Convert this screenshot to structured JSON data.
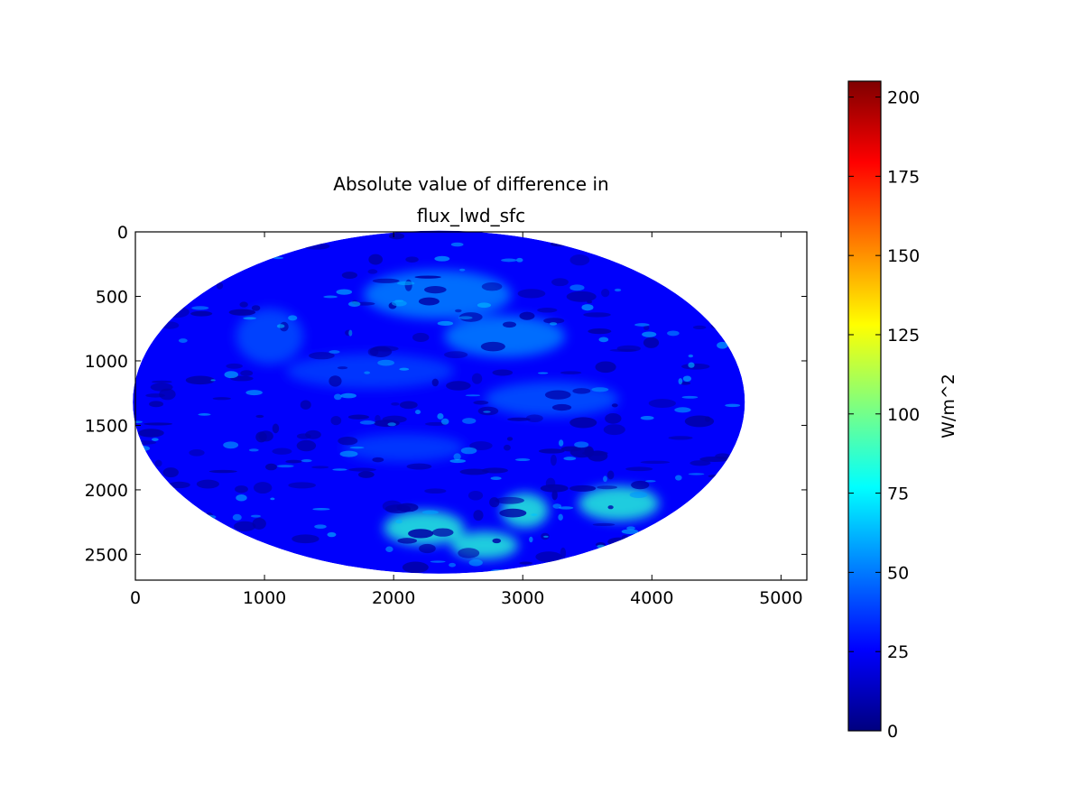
{
  "chart_data": {
    "type": "heatmap",
    "title_lines": [
      "Absolute value of difference in",
      "flux_lwd_sfc"
    ],
    "xlabel": "",
    "ylabel": "",
    "xlim": [
      0,
      5200
    ],
    "ylim": [
      2700,
      0
    ],
    "x_ticks": [
      0,
      1000,
      2000,
      3000,
      4000,
      5000
    ],
    "y_ticks": [
      0,
      500,
      1000,
      1500,
      2000,
      2500
    ],
    "x_tick_labels": [
      "0",
      "1000",
      "2000",
      "3000",
      "4000",
      "5000"
    ],
    "y_tick_labels": [
      "0",
      "500",
      "1000",
      "1500",
      "2000",
      "2500"
    ],
    "image_extent": {
      "disk_center_x": 2350,
      "disk_center_y": 1320,
      "disk_radius_x": 2370,
      "disk_radius_y": 1330
    },
    "grid": false,
    "colorbar": {
      "label": "W/m^2",
      "range": [
        0,
        205
      ],
      "ticks": [
        0,
        25,
        50,
        75,
        100,
        125,
        150,
        175,
        200
      ],
      "tick_labels": [
        "0",
        "25",
        "50",
        "75",
        "100",
        "125",
        "150",
        "175",
        "200"
      ],
      "colormap": "jet",
      "colormap_stops": [
        "#00007f",
        "#0000ff",
        "#007fff",
        "#00ffff",
        "#7fff7f",
        "#ffff00",
        "#ff7f00",
        "#ff0000",
        "#7f0000"
      ]
    },
    "features": [
      {
        "kind": "dominant",
        "value": 25
      },
      {
        "kind": "band",
        "value": 55
      },
      {
        "kind": "clouds",
        "value": 8
      },
      {
        "kind": "south_patch",
        "value": 85
      }
    ]
  }
}
